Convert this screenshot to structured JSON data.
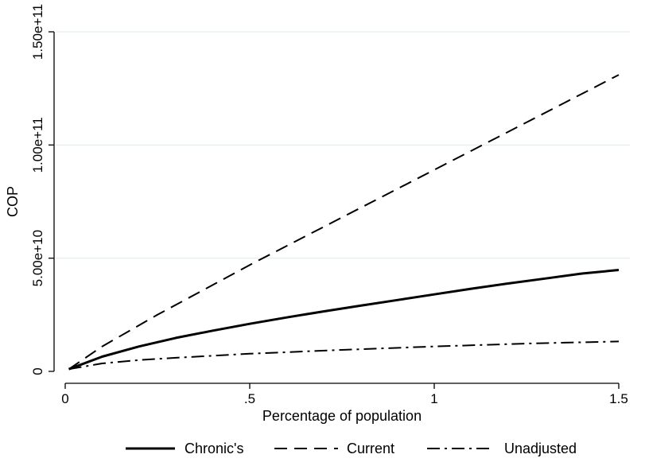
{
  "chart_data": {
    "type": "line",
    "title": "",
    "xlabel": "Percentage of population",
    "ylabel": "COP",
    "xlim": [
      0,
      1.5
    ],
    "ylim": [
      0,
      150000000000
    ],
    "x_ticks": [
      {
        "value": 0,
        "label": "0"
      },
      {
        "value": 0.5,
        "label": ".5"
      },
      {
        "value": 1,
        "label": "1"
      },
      {
        "value": 1.5,
        "label": "1.5"
      }
    ],
    "y_ticks": [
      {
        "value": 0,
        "label": "0"
      },
      {
        "value": 50000000000,
        "label": "5.00e+10"
      },
      {
        "value": 100000000000,
        "label": "1.00e+11"
      },
      {
        "value": 150000000000,
        "label": "1.50e+11"
      }
    ],
    "grid": true,
    "legend_position": "bottom",
    "series": [
      {
        "name": "Chronic's",
        "style": "solid",
        "x": [
          0.01,
          0.1,
          0.2,
          0.3,
          0.4,
          0.5,
          0.6,
          0.7,
          0.8,
          0.9,
          1.0,
          1.1,
          1.2,
          1.3,
          1.4,
          1.5
        ],
        "values": [
          1000000000,
          6500000000,
          11000000000,
          14800000000,
          18000000000,
          21000000000,
          23800000000,
          26500000000,
          29000000000,
          31500000000,
          34000000000,
          36500000000,
          38800000000,
          41000000000,
          43200000000,
          44800000000
        ]
      },
      {
        "name": "Current",
        "style": "dash",
        "x": [
          0.01,
          0.1,
          0.25,
          0.5,
          0.75,
          1.0,
          1.25,
          1.5
        ],
        "values": [
          1000000000,
          11000000000,
          25000000000,
          47000000000,
          68000000000,
          89000000000,
          110000000000,
          131000000000
        ]
      },
      {
        "name": "Unadjusted",
        "style": "dashdot",
        "x": [
          0.01,
          0.1,
          0.2,
          0.3,
          0.5,
          0.75,
          1.0,
          1.25,
          1.5
        ],
        "values": [
          1000000000,
          3500000000,
          5000000000,
          6000000000,
          7800000000,
          9500000000,
          11000000000,
          12300000000,
          13200000000
        ]
      }
    ],
    "colors": {
      "line": "#000000",
      "grid": "#eaf0f2",
      "background": "#ffffff"
    }
  }
}
